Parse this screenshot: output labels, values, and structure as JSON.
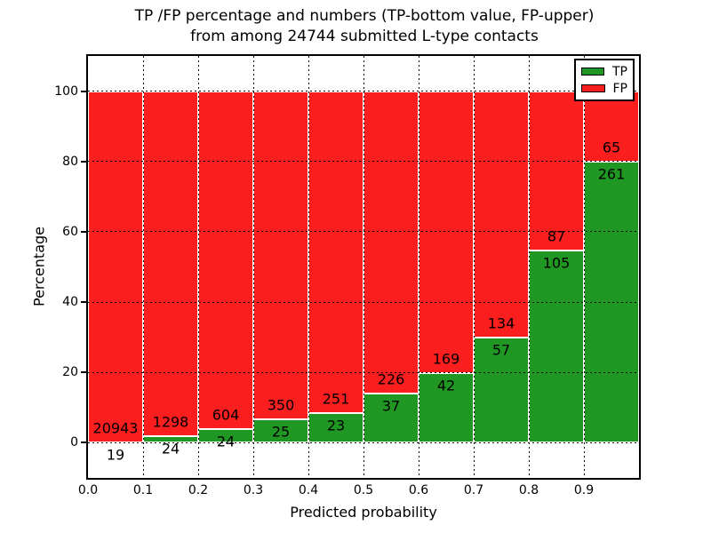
{
  "titles": {
    "line1": "TP /FP percentage and numbers (TP-bottom value, FP-upper)",
    "line2": "from among 24744 submitted L-type contacts"
  },
  "chart_data": {
    "type": "bar",
    "stacked": true,
    "title": "TP /FP percentage and numbers (TP-bottom value, FP-upper) from among 24744 submitted L-type contacts",
    "total_submitted": 24744,
    "xlabel": "Predicted probability",
    "ylabel": "Percentage",
    "xlim": [
      0.0,
      1.0
    ],
    "ylim": [
      -10,
      110
    ],
    "bin_width": 0.1,
    "x_ticks": [
      "0.0",
      "0.1",
      "0.2",
      "0.3",
      "0.4",
      "0.5",
      "0.6",
      "0.7",
      "0.8",
      "0.9"
    ],
    "y_ticks": [
      0,
      20,
      40,
      60,
      80,
      100
    ],
    "grid": "dotted",
    "bar_edge_color": "#ffffff",
    "legend_position": "upper right",
    "series": [
      {
        "name": "TP",
        "color": "#1F9722",
        "counts": [
          19,
          24,
          24,
          25,
          23,
          37,
          42,
          57,
          105,
          261
        ]
      },
      {
        "name": "FP",
        "color": "#FA1E1E",
        "counts": [
          20943,
          1298,
          604,
          350,
          251,
          226,
          169,
          134,
          87,
          65
        ]
      }
    ],
    "tp_percent": [
      0.09,
      1.82,
      3.82,
      6.67,
      8.39,
      14.07,
      19.91,
      29.84,
      54.69,
      80.06
    ]
  },
  "legend": {
    "items": [
      {
        "label": "TP",
        "color": "#1F9722"
      },
      {
        "label": "FP",
        "color": "#FA1E1E"
      }
    ]
  }
}
